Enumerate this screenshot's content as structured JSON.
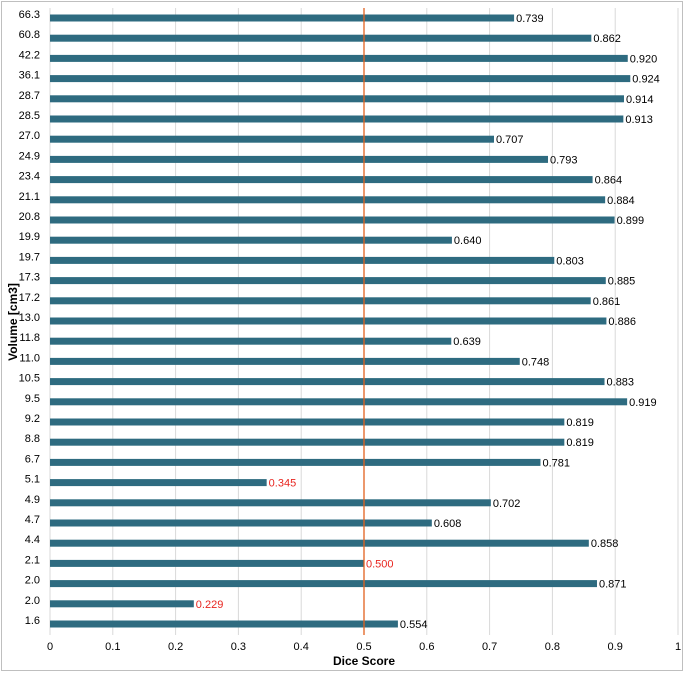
{
  "chart_data": {
    "type": "bar",
    "orientation": "horizontal",
    "xlabel": "Dice Score",
    "ylabel": "Volume [cm3]",
    "xlim": [
      0,
      1
    ],
    "xticks": [
      "0",
      "0.1",
      "0.2",
      "0.3",
      "0.4",
      "0.5",
      "0.6",
      "0.7",
      "0.8",
      "0.9",
      "1"
    ],
    "reference_line": {
      "x": 0.5,
      "color": "#e2611e"
    },
    "bar_color": "#2e6b80",
    "label_color": "#000000",
    "highlight_label_color": "#e8251f",
    "categories": [
      "66.3",
      "60.8",
      "42.2",
      "36.1",
      "28.7",
      "28.5",
      "27.0",
      "24.9",
      "23.4",
      "21.1",
      "20.8",
      "19.9",
      "19.7",
      "17.3",
      "17.2",
      "13.0",
      "11.8",
      "11.0",
      "10.5",
      "9.5",
      "9.2",
      "8.8",
      "6.7",
      "5.1",
      "4.9",
      "4.7",
      "4.4",
      "2.1",
      "2.0",
      "2.0",
      "1.6"
    ],
    "values": [
      0.739,
      0.862,
      0.92,
      0.924,
      0.914,
      0.913,
      0.707,
      0.793,
      0.864,
      0.884,
      0.899,
      0.64,
      0.803,
      0.885,
      0.861,
      0.886,
      0.639,
      0.748,
      0.883,
      0.919,
      0.819,
      0.819,
      0.781,
      0.345,
      0.702,
      0.608,
      0.858,
      0.5,
      0.871,
      0.229,
      0.554
    ],
    "value_labels": [
      "0.739",
      "0.862",
      "0.920",
      "0.924",
      "0.914",
      "0.913",
      "0.707",
      "0.793",
      "0.864",
      "0.884",
      "0.899",
      "0.640",
      "0.803",
      "0.885",
      "0.861",
      "0.886",
      "0.639",
      "0.748",
      "0.883",
      "0.919",
      "0.819",
      "0.819",
      "0.781",
      "0.345",
      "0.702",
      "0.608",
      "0.858",
      "0.500",
      "0.871",
      "0.229",
      "0.554"
    ],
    "highlighted": [
      false,
      false,
      false,
      false,
      false,
      false,
      false,
      false,
      false,
      false,
      false,
      false,
      false,
      false,
      false,
      false,
      false,
      false,
      false,
      false,
      false,
      false,
      false,
      true,
      false,
      false,
      false,
      true,
      false,
      true,
      false
    ],
    "grid": true
  }
}
